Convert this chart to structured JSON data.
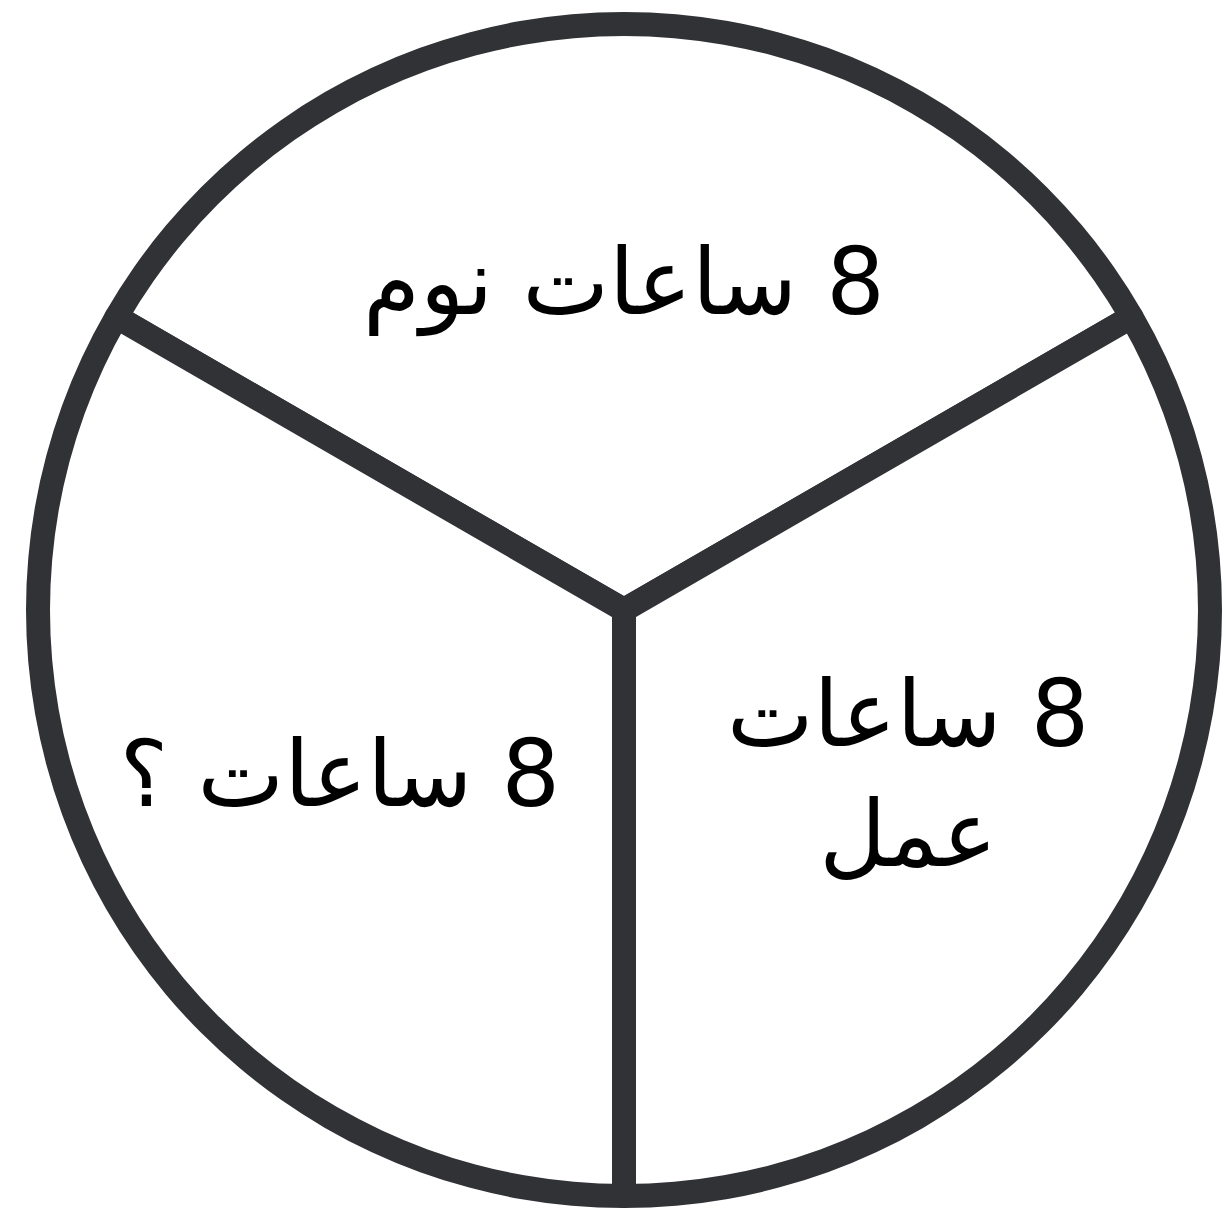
{
  "chart_data": {
    "type": "pie",
    "categories": [
      "8 ساعات نوم",
      "8 ساعات عمل",
      "8 ساعات ؟"
    ],
    "values": [
      8,
      8,
      8
    ],
    "colors": [
      "#ffffff",
      "#ffffff",
      "#ffffff"
    ]
  }
}
